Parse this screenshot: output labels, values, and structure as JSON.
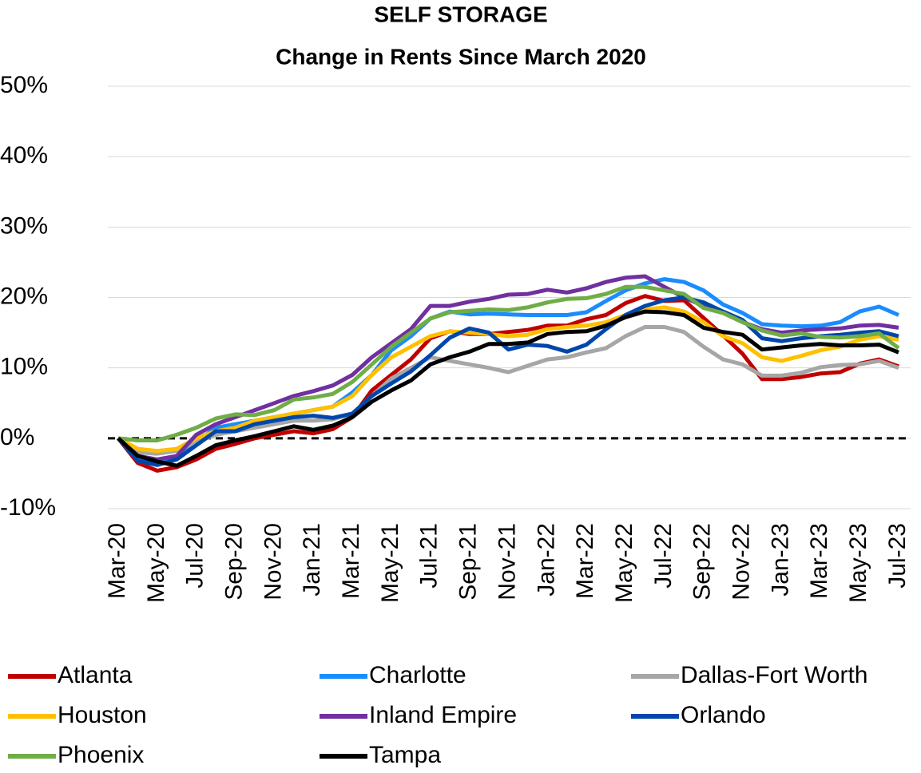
{
  "chart_data": {
    "type": "line",
    "title": "SELF STORAGE",
    "subtitle": "Change in Rents Since March 2020",
    "categories": [
      "Mar-20",
      null,
      "May-20",
      null,
      "Jul-20",
      null,
      "Sep-20",
      null,
      "Nov-20",
      null,
      "Jan-21",
      null,
      "Mar-21",
      null,
      "May-21",
      null,
      "Jul-21",
      null,
      "Sep-21",
      null,
      "Nov-21",
      null,
      "Jan-22",
      null,
      "Mar-22",
      null,
      "May-22",
      null,
      "Jul-22",
      null,
      "Sep-22",
      null,
      "Nov-22",
      null,
      "Jan-23",
      null,
      "Mar-23",
      null,
      "May-23",
      null,
      "Jul-23"
    ],
    "ylim": [
      -10,
      50
    ],
    "yticks": [
      {
        "value": -10,
        "label": "-10%"
      },
      {
        "value": 0,
        "label": "0%"
      },
      {
        "value": 10,
        "label": "10%"
      },
      {
        "value": 20,
        "label": "20%"
      },
      {
        "value": 30,
        "label": "30%"
      },
      {
        "value": 40,
        "label": "40%"
      },
      {
        "value": 50,
        "label": "50%"
      }
    ],
    "grid": true,
    "zero_line": true,
    "legend": "bottom",
    "series": [
      {
        "name": "Atlanta",
        "color": "#c00000",
        "values": [
          0,
          -3.5,
          -4.6,
          -4.1,
          -3,
          -1.5,
          -0.8,
          0,
          0.5,
          1,
          0.7,
          1.3,
          3,
          6.8,
          9,
          11.2,
          14.2,
          15.2,
          14.8,
          14.8,
          15.1,
          15.4,
          16,
          16,
          16.9,
          17.5,
          19.2,
          20.2,
          19.5,
          19.6,
          17.1,
          14.6,
          12,
          8.4,
          8.4,
          8.7,
          9.2,
          9.4,
          10.6,
          11.2,
          10.2
        ]
      },
      {
        "name": "Charlotte",
        "color": "#1a8cff",
        "values": [
          0,
          -3,
          -3.5,
          -2.5,
          -0.5,
          1.5,
          2,
          2.5,
          3,
          3.5,
          4,
          4.5,
          6.5,
          9,
          12.5,
          14.5,
          17,
          18,
          17.6,
          17.7,
          17.6,
          17.5,
          17.5,
          17.5,
          17.9,
          19.5,
          21,
          22,
          22.6,
          22.2,
          21,
          19,
          17.8,
          16.2,
          16,
          15.9,
          16,
          16.5,
          18,
          18.7,
          17.5
        ]
      },
      {
        "name": "Dallas-Fort Worth",
        "color": "#a6a6a6",
        "values": [
          0,
          -2,
          -2.2,
          -1.8,
          -0.5,
          0.5,
          1,
          1.5,
          2,
          2.5,
          2.5,
          2.7,
          3.5,
          6,
          8.5,
          10,
          11.5,
          11,
          10.5,
          10,
          9.4,
          10.3,
          11.2,
          11.5,
          12.2,
          12.8,
          14.5,
          15.8,
          15.8,
          15.1,
          13,
          11.2,
          10.5,
          8.9,
          8.9,
          9.3,
          10.1,
          10.4,
          10.5,
          11,
          10
        ]
      },
      {
        "name": "Houston",
        "color": "#ffc000",
        "values": [
          0,
          -1.5,
          -1.8,
          -1.5,
          0,
          1,
          1.5,
          2.5,
          3,
          3.5,
          4,
          4.5,
          6,
          9,
          11.5,
          13,
          14.5,
          15.2,
          15,
          14.8,
          14.5,
          14.7,
          15.5,
          15.8,
          16,
          16.5,
          17.5,
          18.3,
          18.6,
          18,
          16.5,
          14.5,
          13.5,
          11.5,
          11,
          11.7,
          12.5,
          13,
          14,
          14.5,
          14
        ]
      },
      {
        "name": "Inland Empire",
        "color": "#7030a0",
        "values": [
          0,
          -2.5,
          -3,
          -2.5,
          0.5,
          2,
          3,
          4,
          5,
          6,
          6.7,
          7.5,
          9,
          11.5,
          13.5,
          15.5,
          18.8,
          18.8,
          19.4,
          19.8,
          20.4,
          20.5,
          21.1,
          20.7,
          21.3,
          22.2,
          22.8,
          23,
          21.5,
          20,
          18.8,
          17.8,
          16.5,
          15.5,
          15,
          15.3,
          15.5,
          15.6,
          16,
          16.1,
          15.7
        ]
      },
      {
        "name": "Orlando",
        "color": "#0047ab",
        "values": [
          0,
          -3.2,
          -3.8,
          -3,
          -1,
          1,
          1,
          2,
          2.5,
          3,
          3.2,
          2.9,
          3.5,
          6,
          7.8,
          9.5,
          11.8,
          14.3,
          15.6,
          15,
          12.6,
          13.3,
          13.1,
          12.3,
          13.3,
          15.5,
          17.5,
          18.8,
          19.6,
          20,
          19.3,
          18,
          16.8,
          14.2,
          13.8,
          14.2,
          14.5,
          14.7,
          15,
          15.2,
          14.5
        ]
      },
      {
        "name": "Phoenix",
        "color": "#70ad47",
        "values": [
          0,
          -0.3,
          -0.3,
          0.5,
          1.5,
          2.8,
          3.4,
          3.3,
          4,
          5.5,
          5.8,
          6.3,
          8,
          10.5,
          13,
          15,
          17,
          17.9,
          18.1,
          18.3,
          18.2,
          18.6,
          19.3,
          19.8,
          19.9,
          20.5,
          21.5,
          21.5,
          21,
          20.5,
          18.5,
          17.8,
          16.5,
          15.3,
          14.6,
          14.9,
          14.4,
          14.3,
          14.5,
          14.9,
          12.8
        ]
      },
      {
        "name": "Tampa",
        "color": "#000000",
        "values": [
          0,
          -2.5,
          -3.3,
          -3.9,
          -2.5,
          -1,
          -0.3,
          0.3,
          1,
          1.7,
          1.2,
          1.8,
          3,
          5.2,
          6.8,
          8.2,
          10.5,
          11.5,
          12.3,
          13.4,
          13.4,
          13.6,
          14.8,
          15.1,
          15.2,
          16,
          17.2,
          18,
          17.9,
          17.5,
          15.7,
          15.1,
          14.7,
          12.6,
          12.9,
          13.2,
          13.4,
          13.2,
          13.2,
          13.3,
          12.2
        ]
      }
    ]
  }
}
